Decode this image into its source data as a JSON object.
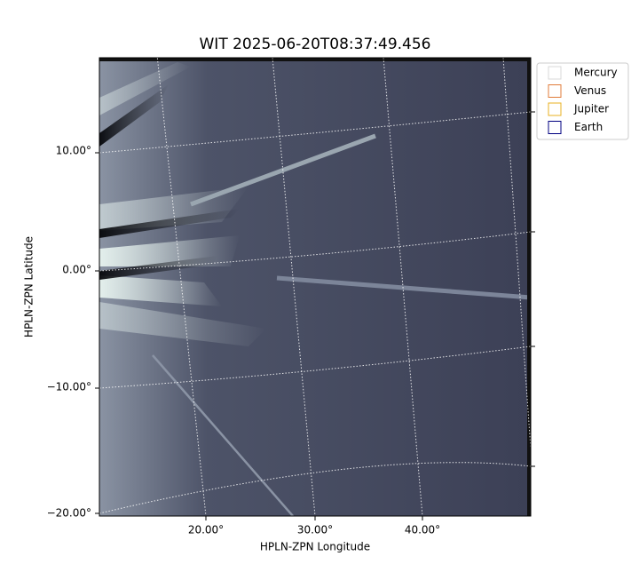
{
  "figure": {
    "title": "WIT 2025-06-20T08:37:49.456",
    "xlabel": "HPLN-ZPN Longitude",
    "ylabel": "HPLN-ZPN Latitude",
    "xticks": [
      "20.00°",
      "30.00°",
      "40.00°"
    ],
    "yticks": [
      "10.00°",
      "0.00°",
      "−10.00°",
      "−20.00°"
    ],
    "legend": [
      {
        "name": "Mercury",
        "color": "#d8d8d8"
      },
      {
        "name": "Venus",
        "color": "#e07b39"
      },
      {
        "name": "Jupiter",
        "color": "#e8b020"
      },
      {
        "name": "Earth",
        "color": "#000080"
      }
    ]
  }
}
